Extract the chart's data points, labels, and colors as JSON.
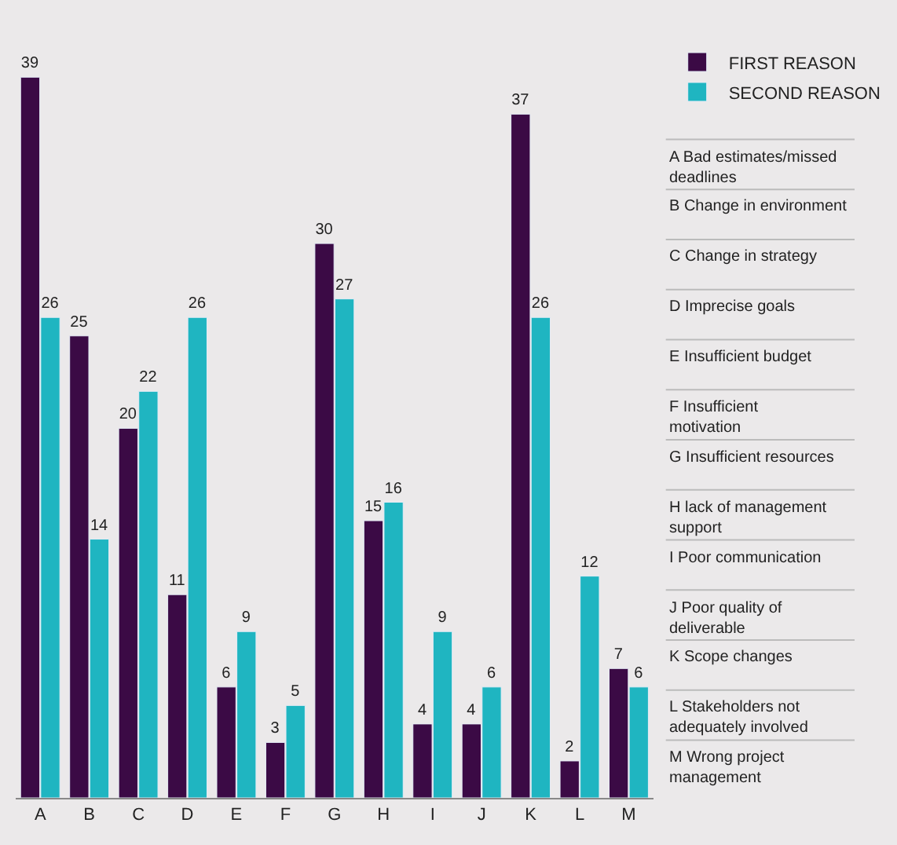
{
  "chart_data": {
    "type": "bar",
    "categories": [
      "A",
      "B",
      "C",
      "D",
      "E",
      "F",
      "G",
      "H",
      "I",
      "J",
      "K",
      "L",
      "M"
    ],
    "series": [
      {
        "name": "FIRST REASON",
        "color": "#3b0a45",
        "values": [
          39,
          25,
          20,
          11,
          6,
          3,
          30,
          15,
          4,
          4,
          37,
          2,
          7
        ]
      },
      {
        "name": "SECOND REASON",
        "color": "#1fb5c1",
        "values": [
          26,
          14,
          22,
          26,
          9,
          5,
          27,
          16,
          9,
          6,
          26,
          12,
          6
        ]
      }
    ],
    "data_labels": true,
    "legend": "top right",
    "grid": false,
    "annotations": [
      "A Bad estimates/missed deadlines",
      "B Change in environment",
      "C Change in strategy",
      "D Imprecise goals",
      "E Insufficient budget",
      "F Insufficient motivation",
      "G Insufficient resources",
      "H lack of management support",
      "I Poor communication",
      "J Poor quality of deliverable",
      "K Scope changes",
      "L Stakeholders not adequately involved",
      "M Wrong project management"
    ]
  }
}
